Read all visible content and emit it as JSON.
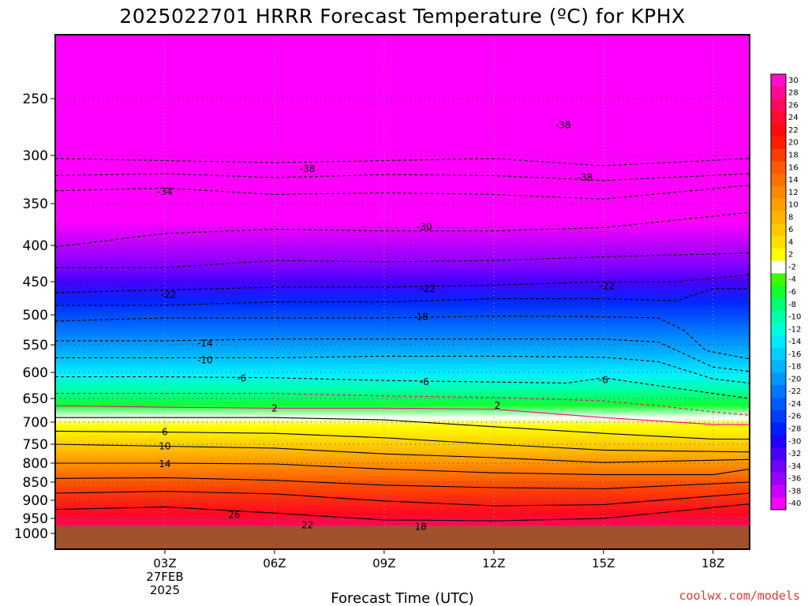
{
  "chart_data": {
    "type": "heatmap",
    "title": "2025022701 HRRR Forecast Temperature (ºC) for KPHX",
    "xlabel": "Forecast Time (UTC)",
    "ylabel": "",
    "credit": "coolwx.com/models",
    "x_ticks": [
      "03Z",
      "06Z",
      "09Z",
      "12Z",
      "15Z",
      "18Z"
    ],
    "x_tick_hours": [
      3,
      6,
      9,
      12,
      15,
      18
    ],
    "x_date_lines": [
      "27FEB",
      "2025"
    ],
    "xlim_hours": [
      0,
      19
    ],
    "y_ticks": [
      250,
      300,
      350,
      400,
      450,
      500,
      550,
      600,
      650,
      700,
      750,
      800,
      850,
      900,
      950,
      1000
    ],
    "ylim_hPa": [
      200,
      1000
    ],
    "y_scale": "log",
    "surface_pressure_hPa": 975,
    "grid": true,
    "colorbar": {
      "labels": [
        30,
        28,
        26,
        24,
        22,
        20,
        18,
        16,
        14,
        12,
        10,
        8,
        6,
        4,
        2,
        -2,
        -4,
        -6,
        -8,
        -10,
        -12,
        -14,
        -16,
        -18,
        -20,
        -22,
        -24,
        -26,
        -28,
        -30,
        -32,
        -34,
        -36,
        -38,
        -40
      ],
      "colors": [
        "#ff10c8",
        "#ff0a90",
        "#ff0a5a",
        "#ff0a30",
        "#ff0a0a",
        "#ff1e00",
        "#ff3c00",
        "#ff5a00",
        "#ff7000",
        "#ff8800",
        "#ffa000",
        "#ffb400",
        "#ffc800",
        "#ffe000",
        "#ffff00",
        "#ffffff",
        "#3cff00",
        "#10ff30",
        "#00ff70",
        "#00ffa8",
        "#00ffd8",
        "#00e8ff",
        "#00d0ff",
        "#00b4ff",
        "#0096ff",
        "#0078ff",
        "#005aff",
        "#003cff",
        "#001eff",
        "#1e00ff",
        "#4600ff",
        "#7000ff",
        "#9a00ff",
        "#c800ff",
        "#ff00ff"
      ]
    },
    "series": [
      {
        "values": [
          {
            "x": 0,
            "y": 303
          },
          {
            "x": 3,
            "y": 305
          },
          {
            "x": 6,
            "y": 307
          },
          {
            "x": 9,
            "y": 305
          },
          {
            "x": 12,
            "y": 303
          },
          {
            "x": 15,
            "y": 310
          },
          {
            "x": 19,
            "y": 303
          }
        ]
      },
      {
        "values": [
          {
            "x": 0,
            "y": 320
          },
          {
            "x": 3,
            "y": 318
          },
          {
            "x": 6,
            "y": 322
          },
          {
            "x": 9,
            "y": 319
          },
          {
            "x": 12,
            "y": 320
          },
          {
            "x": 15,
            "y": 325
          },
          {
            "x": 19,
            "y": 318
          }
        ]
      },
      {
        "values": [
          {
            "x": 0,
            "y": 336
          },
          {
            "x": 3,
            "y": 333
          },
          {
            "x": 6,
            "y": 340
          },
          {
            "x": 9,
            "y": 338
          },
          {
            "x": 12,
            "y": 340
          },
          {
            "x": 15,
            "y": 345
          },
          {
            "x": 19,
            "y": 330
          }
        ]
      },
      {
        "values": [
          {
            "x": 0,
            "y": 402
          },
          {
            "x": 3,
            "y": 385
          },
          {
            "x": 6,
            "y": 380
          },
          {
            "x": 9,
            "y": 382
          },
          {
            "x": 12,
            "y": 382
          },
          {
            "x": 15,
            "y": 378
          },
          {
            "x": 19,
            "y": 360
          }
        ]
      },
      {
        "values": [
          {
            "x": 0,
            "y": 430
          },
          {
            "x": 3,
            "y": 430
          },
          {
            "x": 6,
            "y": 420
          },
          {
            "x": 9,
            "y": 422
          },
          {
            "x": 12,
            "y": 420
          },
          {
            "x": 15,
            "y": 415
          },
          {
            "x": 19,
            "y": 410
          }
        ]
      },
      {
        "values": [
          {
            "x": 0,
            "y": 466
          },
          {
            "x": 3,
            "y": 462
          },
          {
            "x": 6,
            "y": 458
          },
          {
            "x": 9,
            "y": 458
          },
          {
            "x": 12,
            "y": 455
          },
          {
            "x": 15,
            "y": 450
          },
          {
            "x": 17,
            "y": 450
          },
          {
            "x": 19,
            "y": 440
          }
        ]
      },
      {
        "values": [
          {
            "x": 0,
            "y": 485
          },
          {
            "x": 3,
            "y": 485
          },
          {
            "x": 6,
            "y": 480
          },
          {
            "x": 9,
            "y": 480
          },
          {
            "x": 12,
            "y": 475
          },
          {
            "x": 15,
            "y": 475
          },
          {
            "x": 17,
            "y": 478
          },
          {
            "x": 18,
            "y": 460
          },
          {
            "x": 19,
            "y": 460
          }
        ]
      },
      {
        "values": [
          {
            "x": 0,
            "y": 510
          },
          {
            "x": 3,
            "y": 505
          },
          {
            "x": 6,
            "y": 505
          },
          {
            "x": 9,
            "y": 505
          },
          {
            "x": 12,
            "y": 502
          },
          {
            "x": 15,
            "y": 503
          },
          {
            "x": 16.5,
            "y": 505
          },
          {
            "x": 17.2,
            "y": 525
          },
          {
            "x": 17.8,
            "y": 560
          },
          {
            "x": 19,
            "y": 575
          }
        ]
      },
      {
        "values": [
          {
            "x": 0,
            "y": 543
          },
          {
            "x": 3,
            "y": 543
          },
          {
            "x": 6,
            "y": 540
          },
          {
            "x": 9,
            "y": 540
          },
          {
            "x": 12,
            "y": 540
          },
          {
            "x": 15,
            "y": 540
          },
          {
            "x": 16.5,
            "y": 545
          },
          {
            "x": 18,
            "y": 590
          },
          {
            "x": 19,
            "y": 598
          }
        ]
      },
      {
        "values": [
          {
            "x": 0,
            "y": 573
          },
          {
            "x": 3,
            "y": 573
          },
          {
            "x": 6,
            "y": 573
          },
          {
            "x": 9,
            "y": 570
          },
          {
            "x": 12,
            "y": 570
          },
          {
            "x": 15,
            "y": 572
          },
          {
            "x": 16.5,
            "y": 580
          },
          {
            "x": 18,
            "y": 612
          },
          {
            "x": 19,
            "y": 620
          }
        ]
      },
      {
        "values": [
          {
            "x": 0,
            "y": 608
          },
          {
            "x": 3,
            "y": 608
          },
          {
            "x": 6,
            "y": 610
          },
          {
            "x": 9,
            "y": 615
          },
          {
            "x": 12,
            "y": 618
          },
          {
            "x": 14,
            "y": 620
          },
          {
            "x": 15,
            "y": 610
          },
          {
            "x": 16.5,
            "y": 625
          },
          {
            "x": 18,
            "y": 640
          },
          {
            "x": 19,
            "y": 650
          }
        ]
      },
      {
        "values": [
          {
            "x": 0,
            "y": 640
          },
          {
            "x": 3,
            "y": 640
          },
          {
            "x": 6,
            "y": 640
          },
          {
            "x": 9,
            "y": 645
          },
          {
            "x": 12,
            "y": 648
          },
          {
            "x": 15,
            "y": 655
          },
          {
            "x": 16.5,
            "y": 665
          },
          {
            "x": 18,
            "y": 678
          },
          {
            "x": 19,
            "y": 685
          }
        ]
      },
      {
        "values": [
          {
            "x": 0,
            "y": 665
          },
          {
            "x": 3,
            "y": 668
          },
          {
            "x": 6,
            "y": 670
          },
          {
            "x": 9,
            "y": 670
          },
          {
            "x": 12,
            "y": 672
          },
          {
            "x": 15,
            "y": 690
          },
          {
            "x": 18,
            "y": 705
          },
          {
            "x": 19,
            "y": 705
          }
        ]
      },
      {
        "values": [
          {
            "x": 0,
            "y": 690
          },
          {
            "x": 3,
            "y": 690
          },
          {
            "x": 6,
            "y": 690
          },
          {
            "x": 9,
            "y": 695
          },
          {
            "x": 12,
            "y": 710
          },
          {
            "x": 15,
            "y": 725
          },
          {
            "x": 18,
            "y": 738
          },
          {
            "x": 19,
            "y": 738
          }
        ]
      },
      {
        "values": [
          {
            "x": 0,
            "y": 720
          },
          {
            "x": 3,
            "y": 722
          },
          {
            "x": 6,
            "y": 725
          },
          {
            "x": 9,
            "y": 735
          },
          {
            "x": 12,
            "y": 750
          },
          {
            "x": 15,
            "y": 765
          },
          {
            "x": 19,
            "y": 770
          }
        ]
      },
      {
        "values": [
          {
            "x": 0,
            "y": 750
          },
          {
            "x": 3,
            "y": 755
          },
          {
            "x": 6,
            "y": 760
          },
          {
            "x": 9,
            "y": 775
          },
          {
            "x": 12,
            "y": 785
          },
          {
            "x": 15,
            "y": 798
          },
          {
            "x": 19,
            "y": 790
          }
        ]
      },
      {
        "values": [
          {
            "x": 0,
            "y": 800
          },
          {
            "x": 3,
            "y": 800
          },
          {
            "x": 6,
            "y": 802
          },
          {
            "x": 9,
            "y": 815
          },
          {
            "x": 12,
            "y": 825
          },
          {
            "x": 15,
            "y": 830
          },
          {
            "x": 18,
            "y": 830
          },
          {
            "x": 19,
            "y": 815
          }
        ]
      },
      {
        "values": [
          {
            "x": 0,
            "y": 840
          },
          {
            "x": 3,
            "y": 838
          },
          {
            "x": 6,
            "y": 845
          },
          {
            "x": 9,
            "y": 858
          },
          {
            "x": 12,
            "y": 865
          },
          {
            "x": 15,
            "y": 868
          },
          {
            "x": 19,
            "y": 850
          }
        ]
      },
      {
        "values": [
          {
            "x": 0,
            "y": 880
          },
          {
            "x": 3,
            "y": 875
          },
          {
            "x": 6,
            "y": 882
          },
          {
            "x": 9,
            "y": 902
          },
          {
            "x": 12,
            "y": 915
          },
          {
            "x": 15,
            "y": 912
          },
          {
            "x": 19,
            "y": 880
          }
        ]
      },
      {
        "values": [
          {
            "x": 0,
            "y": 925
          },
          {
            "x": 3,
            "y": 918
          },
          {
            "x": 6,
            "y": 935
          },
          {
            "x": 9,
            "y": 955
          },
          {
            "x": 12,
            "y": 958
          },
          {
            "x": 15,
            "y": 950
          },
          {
            "x": 19,
            "y": 910
          }
        ]
      }
    ],
    "labels": [
      {
        "text": "-38",
        "x": 6.9,
        "y": 313
      },
      {
        "text": "-38",
        "x": 14.5,
        "y": 322
      },
      {
        "text": "-34",
        "x": 3,
        "y": 337
      },
      {
        "text": "-30",
        "x": 10.1,
        "y": 377
      },
      {
        "text": "-22",
        "x": 3.1,
        "y": 469
      },
      {
        "text": "-22",
        "x": 10.2,
        "y": 460
      },
      {
        "text": "-22",
        "x": 15.1,
        "y": 456
      },
      {
        "text": "-18",
        "x": 10,
        "y": 503
      },
      {
        "text": "-14",
        "x": 4.1,
        "y": 547
      },
      {
        "text": "-10",
        "x": 4.1,
        "y": 577
      },
      {
        "text": "-6",
        "x": 5.1,
        "y": 611
      },
      {
        "text": "-6",
        "x": 10.1,
        "y": 618
      },
      {
        "text": "-6",
        "x": 15,
        "y": 614
      },
      {
        "text": "2",
        "x": 6,
        "y": 670
      },
      {
        "text": "2",
        "x": 12.1,
        "y": 665
      },
      {
        "text": "6",
        "x": 3,
        "y": 722
      },
      {
        "text": "10",
        "x": 3,
        "y": 755
      },
      {
        "text": "14",
        "x": 3,
        "y": 802
      },
      {
        "text": "26",
        "x": 4.9,
        "y": 940
      },
      {
        "text": "22",
        "x": 6.9,
        "y": 972
      },
      {
        "text": "18",
        "x": 10,
        "y": 977
      },
      {
        "text": "-38",
        "x": 13.9,
        "y": 272
      }
    ]
  }
}
